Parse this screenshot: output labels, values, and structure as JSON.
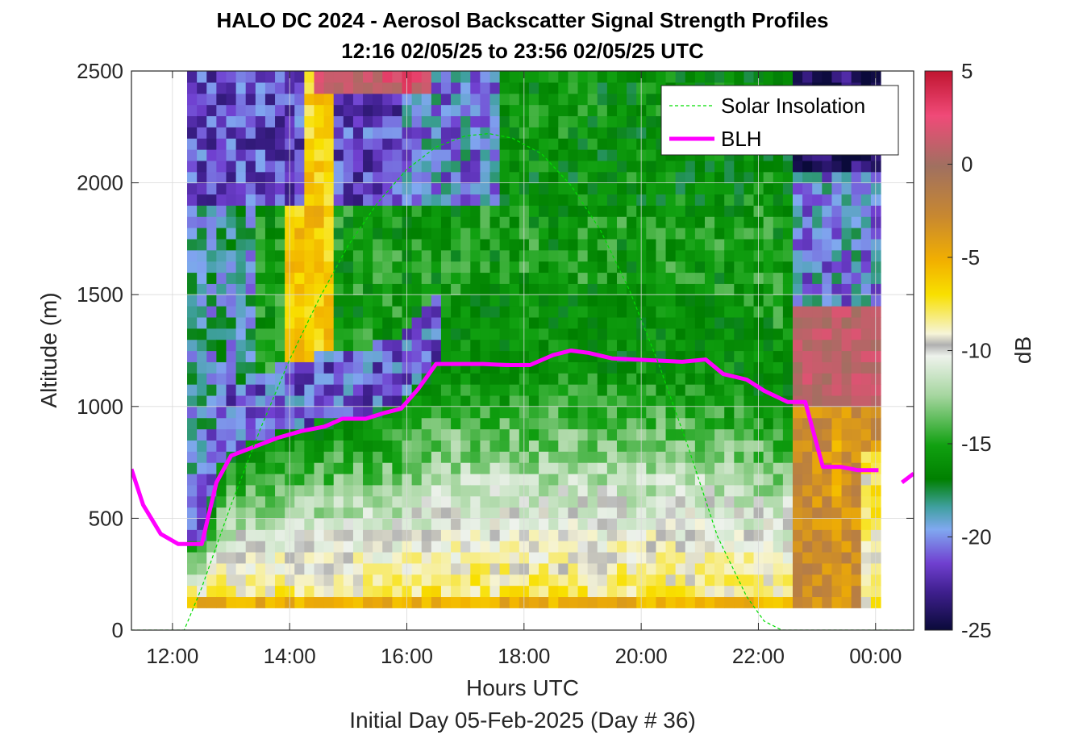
{
  "chart_data": {
    "type": "heatmap",
    "title": "HALO DC 2024 - Aerosol Backscatter Signal Strength Profiles",
    "subtitle": "12:16 02/05/25 to 23:56 02/05/25  UTC",
    "xlabel": "Hours UTC",
    "xlabel2": "Initial Day 05-Feb-2025 (Day # 36)",
    "ylabel": "Altitude (m)",
    "xlim": [
      11.3,
      24.65
    ],
    "ylim": [
      0,
      2500
    ],
    "x_ticks": [
      12,
      14,
      16,
      18,
      20,
      22,
      24
    ],
    "x_tick_labels": [
      "12:00",
      "14:00",
      "16:00",
      "18:00",
      "20:00",
      "22:00",
      "00:00"
    ],
    "y_ticks": [
      0,
      500,
      1000,
      1500,
      2000,
      2500
    ],
    "y_tick_labels": [
      "0",
      "500",
      "1000",
      "1500",
      "2000",
      "2500"
    ],
    "colorbar": {
      "label": "dB",
      "range": [
        -25,
        5
      ],
      "ticks": [
        5,
        0,
        -5,
        -10,
        -15,
        -20,
        -25
      ],
      "tick_labels": [
        "5",
        "0",
        "-5",
        "-10",
        "-15",
        "-20",
        "-25"
      ]
    },
    "grid": true,
    "legend": {
      "position": "top-right",
      "entries": [
        "Solar Insolation",
        "BLH"
      ]
    },
    "series": [
      {
        "name": "BLH",
        "color": "#ff00ff",
        "x": [
          11.3,
          11.5,
          11.8,
          12.1,
          12.5,
          12.75,
          13.0,
          13.4,
          13.8,
          14.2,
          14.6,
          14.9,
          15.3,
          15.6,
          15.9,
          16.2,
          16.5,
          16.9,
          17.3,
          17.7,
          18.1,
          18.5,
          18.8,
          19.1,
          19.5,
          19.9,
          20.3,
          20.7,
          21.1,
          21.4,
          21.8,
          22.1,
          22.5,
          22.8,
          23.1,
          23.4,
          23.7,
          24.05
        ],
        "y": [
          720,
          560,
          430,
          385,
          385,
          660,
          780,
          820,
          860,
          890,
          910,
          945,
          945,
          970,
          990,
          1080,
          1190,
          1190,
          1190,
          1185,
          1185,
          1230,
          1250,
          1240,
          1215,
          1210,
          1205,
          1200,
          1210,
          1145,
          1120,
          1070,
          1020,
          1020,
          730,
          730,
          715,
          715
        ]
      },
      {
        "name": "BLH",
        "color": "#ff00ff",
        "x": [
          24.45,
          24.65
        ],
        "y": [
          660,
          700
        ]
      },
      {
        "name": "Solar Insolation",
        "color": "#00dd00",
        "x": [
          11.3,
          12.2,
          12.5,
          13.0,
          13.5,
          14.0,
          14.5,
          15.0,
          15.5,
          16.0,
          16.5,
          17.0,
          17.4,
          17.8,
          18.3,
          18.8,
          19.3,
          19.8,
          20.3,
          20.8,
          21.3,
          21.8,
          22.1,
          22.4,
          24.65
        ],
        "y": [
          0,
          0,
          190,
          560,
          900,
          1210,
          1480,
          1720,
          1910,
          2060,
          2160,
          2210,
          2220,
          2200,
          2130,
          1990,
          1790,
          1520,
          1190,
          820,
          420,
          150,
          40,
          0,
          0
        ]
      }
    ]
  }
}
